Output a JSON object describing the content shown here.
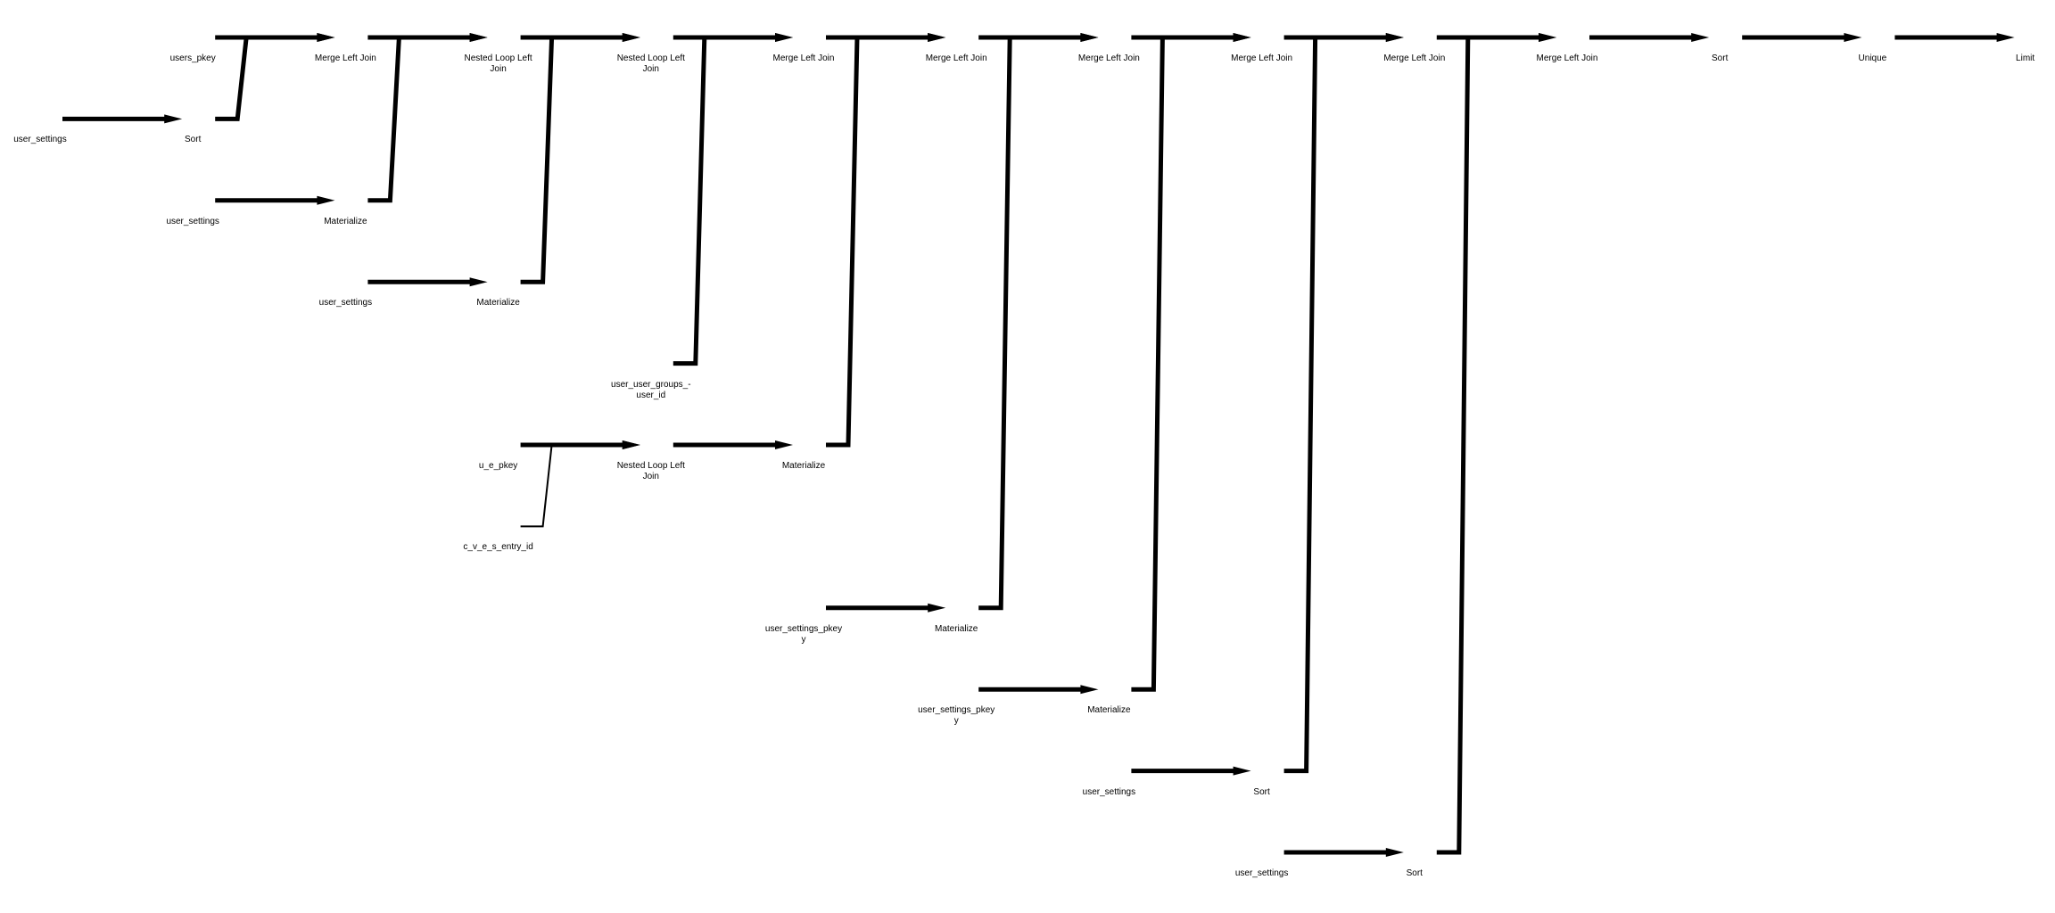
{
  "diagram": {
    "line_color": "#000000",
    "background": "#ffffff",
    "nodes": [
      {
        "id": "n1",
        "label": "user_settings"
      },
      {
        "id": "n2",
        "label": "Sort"
      },
      {
        "id": "n3",
        "label": "users_pkey"
      },
      {
        "id": "n4",
        "label": "Merge Left Join"
      },
      {
        "id": "n5",
        "label": "user_settings"
      },
      {
        "id": "n6",
        "label": "Materialize"
      },
      {
        "id": "n7",
        "label": "Nested Loop Left\nJoin"
      },
      {
        "id": "n8",
        "label": "user_settings"
      },
      {
        "id": "n9",
        "label": "Materialize"
      },
      {
        "id": "n10",
        "label": "Nested Loop Left\nJoin"
      },
      {
        "id": "n11",
        "label": "user_user_groups_-\nuser_id"
      },
      {
        "id": "n12",
        "label": "Merge Left Join"
      },
      {
        "id": "n13",
        "label": "u_e_pkey"
      },
      {
        "id": "n14",
        "label": "c_v_e_s_entry_id"
      },
      {
        "id": "n15",
        "label": "Nested Loop Left\nJoin"
      },
      {
        "id": "n16",
        "label": "Materialize"
      },
      {
        "id": "n17",
        "label": "Merge Left Join"
      },
      {
        "id": "n18",
        "label": "user_settings_pkey\ny"
      },
      {
        "id": "n19",
        "label": "Materialize"
      },
      {
        "id": "n20",
        "label": "Merge Left Join"
      },
      {
        "id": "n21",
        "label": "user_settings_pkey\ny"
      },
      {
        "id": "n22",
        "label": "Materialize"
      },
      {
        "id": "n23",
        "label": "Merge Left Join"
      },
      {
        "id": "n24",
        "label": "user_settings"
      },
      {
        "id": "n25",
        "label": "Sort"
      },
      {
        "id": "n26",
        "label": "Merge Left Join"
      },
      {
        "id": "n27",
        "label": "user_settings"
      },
      {
        "id": "n28",
        "label": "Sort"
      },
      {
        "id": "n29",
        "label": "Merge Left Join"
      },
      {
        "id": "n30",
        "label": "Sort"
      },
      {
        "id": "n31",
        "label": "Unique"
      },
      {
        "id": "n32",
        "label": "Limit"
      }
    ],
    "edges": [
      [
        "n1",
        "n2"
      ],
      [
        "n2",
        "n4"
      ],
      [
        "n3",
        "n4"
      ],
      [
        "n4",
        "n7"
      ],
      [
        "n5",
        "n6"
      ],
      [
        "n6",
        "n7"
      ],
      [
        "n7",
        "n10"
      ],
      [
        "n8",
        "n9"
      ],
      [
        "n9",
        "n10"
      ],
      [
        "n10",
        "n12"
      ],
      [
        "n11",
        "n12"
      ],
      [
        "n13",
        "n15"
      ],
      [
        "n14",
        "n15"
      ],
      [
        "n15",
        "n16"
      ],
      [
        "n12",
        "n17"
      ],
      [
        "n16",
        "n17"
      ],
      [
        "n17",
        "n20"
      ],
      [
        "n18",
        "n19"
      ],
      [
        "n19",
        "n20"
      ],
      [
        "n20",
        "n23"
      ],
      [
        "n21",
        "n22"
      ],
      [
        "n22",
        "n23"
      ],
      [
        "n23",
        "n26"
      ],
      [
        "n24",
        "n25"
      ],
      [
        "n25",
        "n26"
      ],
      [
        "n26",
        "n29"
      ],
      [
        "n27",
        "n28"
      ],
      [
        "n28",
        "n29"
      ],
      [
        "n29",
        "n30"
      ],
      [
        "n30",
        "n31"
      ],
      [
        "n31",
        "n32"
      ]
    ]
  }
}
